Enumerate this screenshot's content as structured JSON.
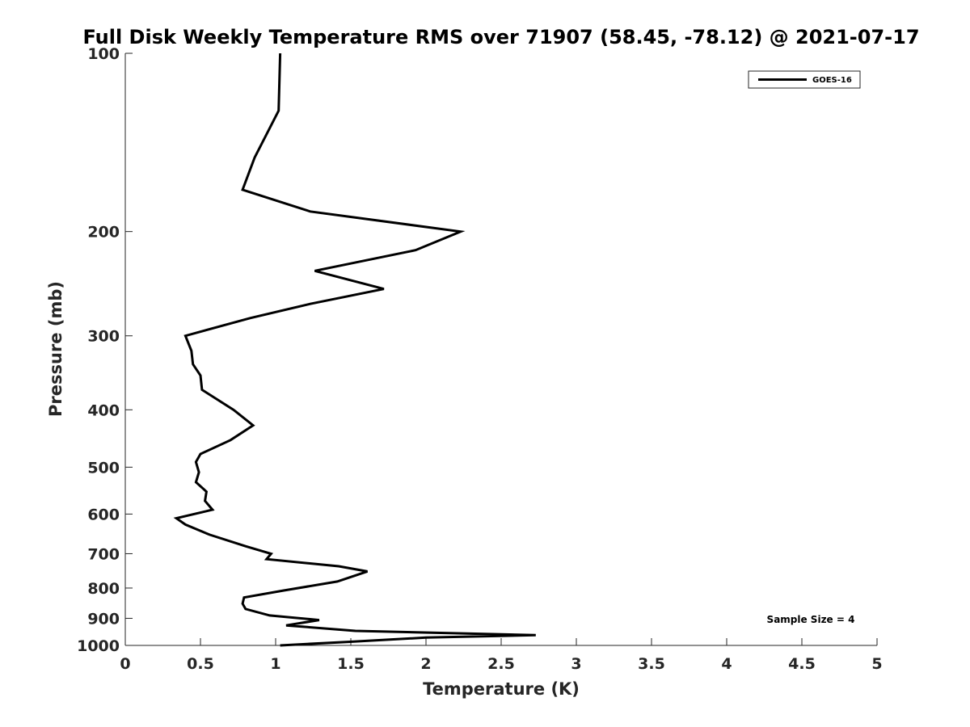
{
  "chart_data": {
    "type": "line",
    "title": "Full Disk Weekly Temperature RMS over 71907 (58.45, -78.12) @ 2021-07-17",
    "xlabel": "Temperature (K)",
    "ylabel": "Pressure (mb)",
    "xlim": [
      0,
      5
    ],
    "ylim": [
      1000,
      100
    ],
    "y_scale": "log",
    "y_direction": "reversed",
    "grid": false,
    "legend_position": "top-right",
    "x_ticks": [
      "0",
      "0.5",
      "1",
      "1.5",
      "2",
      "2.5",
      "3",
      "3.5",
      "4",
      "4.5",
      "5"
    ],
    "y_ticks": [
      "100",
      "200",
      "300",
      "400",
      "500",
      "600",
      "700",
      "800",
      "900",
      "1000"
    ],
    "annotation": "Sample Size = 4",
    "series": [
      {
        "name": "GOES-16",
        "color": "#000000",
        "points": [
          [
            1.03,
            100
          ],
          [
            1.02,
            125
          ],
          [
            0.86,
            150
          ],
          [
            0.78,
            170
          ],
          [
            1.23,
            185
          ],
          [
            2.23,
            200
          ],
          [
            1.93,
            215
          ],
          [
            1.26,
            233
          ],
          [
            1.72,
            250
          ],
          [
            1.23,
            265
          ],
          [
            0.83,
            280
          ],
          [
            0.4,
            300
          ],
          [
            0.44,
            318
          ],
          [
            0.45,
            335
          ],
          [
            0.5,
            350
          ],
          [
            0.51,
            370
          ],
          [
            0.72,
            400
          ],
          [
            0.85,
            425
          ],
          [
            0.7,
            450
          ],
          [
            0.5,
            475
          ],
          [
            0.47,
            490
          ],
          [
            0.49,
            510
          ],
          [
            0.47,
            530
          ],
          [
            0.54,
            550
          ],
          [
            0.53,
            570
          ],
          [
            0.58,
            590
          ],
          [
            0.34,
            610
          ],
          [
            0.4,
            625
          ],
          [
            0.56,
            650
          ],
          [
            0.8,
            680
          ],
          [
            0.97,
            700
          ],
          [
            0.94,
            715
          ],
          [
            1.42,
            735
          ],
          [
            1.61,
            750
          ],
          [
            1.41,
            780
          ],
          [
            1.05,
            808
          ],
          [
            0.79,
            830
          ],
          [
            0.78,
            850
          ],
          [
            0.8,
            868
          ],
          [
            0.96,
            890
          ],
          [
            1.29,
            906
          ],
          [
            1.07,
            925
          ],
          [
            1.53,
            945
          ],
          [
            2.73,
            961
          ],
          [
            2.0,
            970
          ],
          [
            1.52,
            985
          ],
          [
            1.03,
            1000
          ]
        ]
      }
    ]
  }
}
